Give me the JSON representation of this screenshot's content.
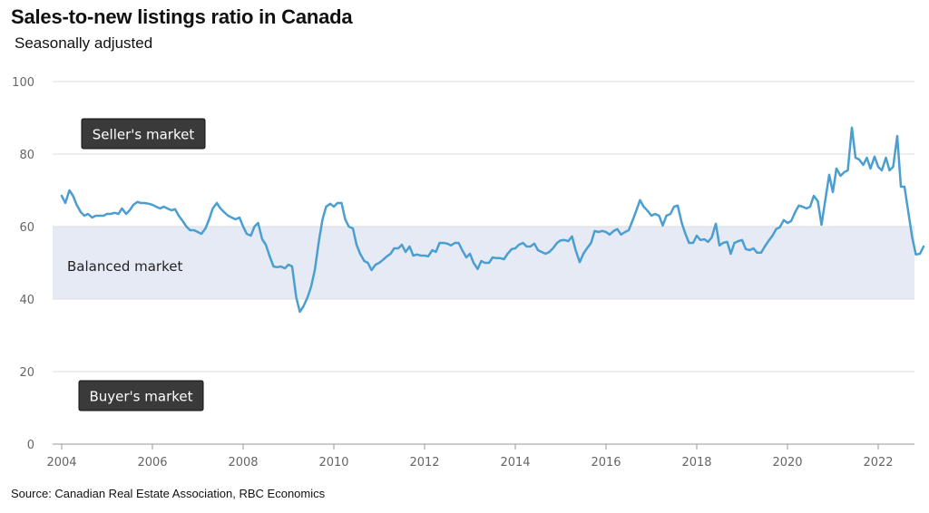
{
  "title": "Sales-to-new listings ratio in Canada",
  "subtitle": "Seasonally adjusted",
  "source": "Source: Canadian Real Estate Association, RBC Economics",
  "colors": {
    "line": "#4a9fd0",
    "band": "#e6eaf4",
    "grid": "#dddddd",
    "label_box": "#3a3a3a"
  },
  "chart_data": {
    "type": "line",
    "title": "Sales-to-new listings ratio in Canada",
    "subtitle": "Seasonally adjusted",
    "xlabel": "",
    "ylabel": "",
    "ylim": [
      0,
      100
    ],
    "xlim": [
      2004,
      2022.8
    ],
    "y_ticks": [
      "0",
      "20",
      "40",
      "60",
      "80",
      "100"
    ],
    "x_ticks": [
      "2004",
      "2006",
      "2008",
      "2010",
      "2012",
      "2014",
      "2016",
      "2018",
      "2020",
      "2022"
    ],
    "grid": true,
    "bands": [
      {
        "label": "Balanced market",
        "from": 40,
        "to": 60
      }
    ],
    "annotations": [
      {
        "label": "Seller's market"
      },
      {
        "label": "Buyer's market"
      }
    ],
    "series": [
      {
        "points": [
          [
            2004.0,
            68.5
          ],
          [
            2004.08,
            66.5
          ],
          [
            2004.17,
            70
          ],
          [
            2004.25,
            68.5
          ],
          [
            2004.33,
            66
          ],
          [
            2004.42,
            64
          ],
          [
            2004.5,
            63
          ],
          [
            2004.58,
            63.5
          ],
          [
            2004.67,
            62.5
          ],
          [
            2004.75,
            63
          ],
          [
            2004.83,
            63
          ],
          [
            2004.92,
            63
          ],
          [
            2005.0,
            63.5
          ],
          [
            2005.08,
            63.5
          ],
          [
            2005.17,
            63.8
          ],
          [
            2005.25,
            63.5
          ],
          [
            2005.33,
            65
          ],
          [
            2005.42,
            63.5
          ],
          [
            2005.5,
            64.5
          ],
          [
            2005.58,
            66
          ],
          [
            2005.67,
            66.8
          ],
          [
            2005.75,
            66.5
          ],
          [
            2005.83,
            66.5
          ],
          [
            2005.92,
            66.3
          ],
          [
            2006.0,
            66
          ],
          [
            2006.08,
            65.5
          ],
          [
            2006.17,
            65
          ],
          [
            2006.25,
            65.5
          ],
          [
            2006.33,
            65
          ],
          [
            2006.42,
            64.5
          ],
          [
            2006.5,
            64.8
          ],
          [
            2006.58,
            63
          ],
          [
            2006.67,
            61.5
          ],
          [
            2006.75,
            60
          ],
          [
            2006.83,
            59
          ],
          [
            2006.92,
            59
          ],
          [
            2007.0,
            58.5
          ],
          [
            2007.08,
            58
          ],
          [
            2007.17,
            59.5
          ],
          [
            2007.25,
            62
          ],
          [
            2007.33,
            65
          ],
          [
            2007.42,
            66.5
          ],
          [
            2007.5,
            65
          ],
          [
            2007.58,
            64
          ],
          [
            2007.67,
            63
          ],
          [
            2007.75,
            62.5
          ],
          [
            2007.83,
            62
          ],
          [
            2007.92,
            62.5
          ],
          [
            2008.0,
            60
          ],
          [
            2008.08,
            58
          ],
          [
            2008.17,
            57.5
          ],
          [
            2008.25,
            60
          ],
          [
            2008.33,
            61
          ],
          [
            2008.42,
            56.5
          ],
          [
            2008.5,
            55
          ],
          [
            2008.58,
            52
          ],
          [
            2008.67,
            49
          ],
          [
            2008.75,
            48.8
          ],
          [
            2008.83,
            49
          ],
          [
            2008.92,
            48.5
          ],
          [
            2009.0,
            49.5
          ],
          [
            2009.08,
            49
          ],
          [
            2009.17,
            40.5
          ],
          [
            2009.25,
            36.5
          ],
          [
            2009.33,
            38
          ],
          [
            2009.42,
            40.5
          ],
          [
            2009.5,
            43.5
          ],
          [
            2009.58,
            48
          ],
          [
            2009.67,
            56
          ],
          [
            2009.75,
            62
          ],
          [
            2009.83,
            65.5
          ],
          [
            2009.92,
            66.3
          ],
          [
            2010.0,
            65.5
          ],
          [
            2010.08,
            66.5
          ],
          [
            2010.17,
            66.5
          ],
          [
            2010.25,
            62
          ],
          [
            2010.33,
            60
          ],
          [
            2010.42,
            59.5
          ],
          [
            2010.5,
            55
          ],
          [
            2010.58,
            52.5
          ],
          [
            2010.67,
            50.5
          ],
          [
            2010.75,
            50
          ],
          [
            2010.83,
            48
          ],
          [
            2010.92,
            49.5
          ],
          [
            2011.0,
            50
          ],
          [
            2011.08,
            50.8
          ],
          [
            2011.17,
            51.8
          ],
          [
            2011.25,
            52.5
          ],
          [
            2011.33,
            54
          ],
          [
            2011.42,
            54
          ],
          [
            2011.5,
            55
          ],
          [
            2011.58,
            53
          ],
          [
            2011.67,
            54.5
          ],
          [
            2011.75,
            52
          ],
          [
            2011.83,
            52.3
          ],
          [
            2011.92,
            52
          ],
          [
            2012.0,
            52
          ],
          [
            2012.08,
            51.8
          ],
          [
            2012.17,
            53.5
          ],
          [
            2012.25,
            53
          ],
          [
            2012.33,
            55.5
          ],
          [
            2012.42,
            55.5
          ],
          [
            2012.5,
            55.3
          ],
          [
            2012.58,
            54.8
          ],
          [
            2012.67,
            55.5
          ],
          [
            2012.75,
            55.5
          ],
          [
            2012.83,
            53.5
          ],
          [
            2012.92,
            51.5
          ],
          [
            2013.0,
            52.5
          ],
          [
            2013.08,
            50
          ],
          [
            2013.17,
            48.3
          ],
          [
            2013.25,
            50.5
          ],
          [
            2013.33,
            50
          ],
          [
            2013.42,
            50
          ],
          [
            2013.5,
            51.5
          ],
          [
            2013.58,
            51.3
          ],
          [
            2013.67,
            51.3
          ],
          [
            2013.75,
            51
          ],
          [
            2013.83,
            52.5
          ],
          [
            2013.92,
            53.8
          ],
          [
            2014.0,
            54
          ],
          [
            2014.08,
            55
          ],
          [
            2014.17,
            55.5
          ],
          [
            2014.25,
            54.5
          ],
          [
            2014.33,
            54.5
          ],
          [
            2014.42,
            55.3
          ],
          [
            2014.5,
            53.5
          ],
          [
            2014.58,
            53
          ],
          [
            2014.67,
            52.5
          ],
          [
            2014.75,
            53
          ],
          [
            2014.83,
            54
          ],
          [
            2014.92,
            55.5
          ],
          [
            2015.0,
            56.2
          ],
          [
            2015.08,
            56.3
          ],
          [
            2015.17,
            56
          ],
          [
            2015.25,
            57.3
          ],
          [
            2015.33,
            53.5
          ],
          [
            2015.42,
            50.2
          ],
          [
            2015.5,
            52.5
          ],
          [
            2015.58,
            54
          ],
          [
            2015.67,
            55.5
          ],
          [
            2015.75,
            58.8
          ],
          [
            2015.83,
            58.5
          ],
          [
            2015.92,
            58.8
          ],
          [
            2016.0,
            58.5
          ],
          [
            2016.08,
            57.8
          ],
          [
            2016.17,
            58.8
          ],
          [
            2016.25,
            59.3
          ],
          [
            2016.33,
            57.8
          ],
          [
            2016.42,
            58.5
          ],
          [
            2016.5,
            59
          ],
          [
            2016.58,
            61.5
          ],
          [
            2016.67,
            64.5
          ],
          [
            2016.75,
            67.3
          ],
          [
            2016.83,
            65.5
          ],
          [
            2016.92,
            64.3
          ],
          [
            2017.0,
            63
          ],
          [
            2017.08,
            63.5
          ],
          [
            2017.17,
            63
          ],
          [
            2017.25,
            60.3
          ],
          [
            2017.33,
            63
          ],
          [
            2017.42,
            63.5
          ],
          [
            2017.5,
            65.5
          ],
          [
            2017.58,
            65.8
          ],
          [
            2017.67,
            61
          ],
          [
            2017.75,
            58
          ],
          [
            2017.83,
            55.5
          ],
          [
            2017.92,
            55.5
          ],
          [
            2018.0,
            57.5
          ],
          [
            2018.08,
            56.3
          ],
          [
            2018.17,
            56.5
          ],
          [
            2018.25,
            55.8
          ],
          [
            2018.33,
            57
          ],
          [
            2018.42,
            60.8
          ],
          [
            2018.5,
            54.8
          ],
          [
            2018.58,
            55.5
          ],
          [
            2018.67,
            55.8
          ],
          [
            2018.75,
            52.5
          ],
          [
            2018.83,
            55.5
          ],
          [
            2018.92,
            56
          ],
          [
            2019.0,
            56.3
          ],
          [
            2019.08,
            53.8
          ],
          [
            2019.17,
            53.5
          ],
          [
            2019.25,
            54
          ],
          [
            2019.33,
            52.8
          ],
          [
            2019.42,
            52.8
          ],
          [
            2019.5,
            54.5
          ],
          [
            2019.58,
            56
          ],
          [
            2019.67,
            57.5
          ],
          [
            2019.75,
            59.3
          ],
          [
            2019.83,
            59.8
          ],
          [
            2019.92,
            61.8
          ],
          [
            2020.0,
            61
          ],
          [
            2020.08,
            61.5
          ],
          [
            2020.17,
            64
          ],
          [
            2020.25,
            65.8
          ],
          [
            2020.33,
            65.5
          ],
          [
            2020.42,
            65
          ],
          [
            2020.5,
            65.5
          ],
          [
            2020.58,
            68.5
          ],
          [
            2020.67,
            67
          ],
          [
            2020.75,
            60.5
          ],
          [
            2020.83,
            67
          ],
          [
            2020.92,
            74.3
          ],
          [
            2021.0,
            69.5
          ],
          [
            2021.08,
            76
          ],
          [
            2021.17,
            74
          ],
          [
            2021.25,
            75
          ],
          [
            2021.33,
            75.5
          ],
          [
            2021.42,
            87.3
          ],
          [
            2021.5,
            79
          ],
          [
            2021.58,
            78.5
          ],
          [
            2021.67,
            77
          ],
          [
            2021.75,
            79
          ],
          [
            2021.83,
            76
          ],
          [
            2021.92,
            79.3
          ],
          [
            2022.0,
            76.5
          ],
          [
            2022.08,
            75.5
          ],
          [
            2022.17,
            79
          ],
          [
            2022.25,
            75.5
          ],
          [
            2022.33,
            76.5
          ],
          [
            2022.42,
            85
          ],
          [
            2022.5,
            71
          ],
          [
            2022.58,
            71
          ],
          [
            2022.67,
            63.5
          ],
          [
            2022.75,
            57
          ],
          [
            2022.83,
            52.3
          ],
          [
            2022.92,
            52.5
          ],
          [
            2023.0,
            54.5
          ]
        ]
      }
    ]
  }
}
